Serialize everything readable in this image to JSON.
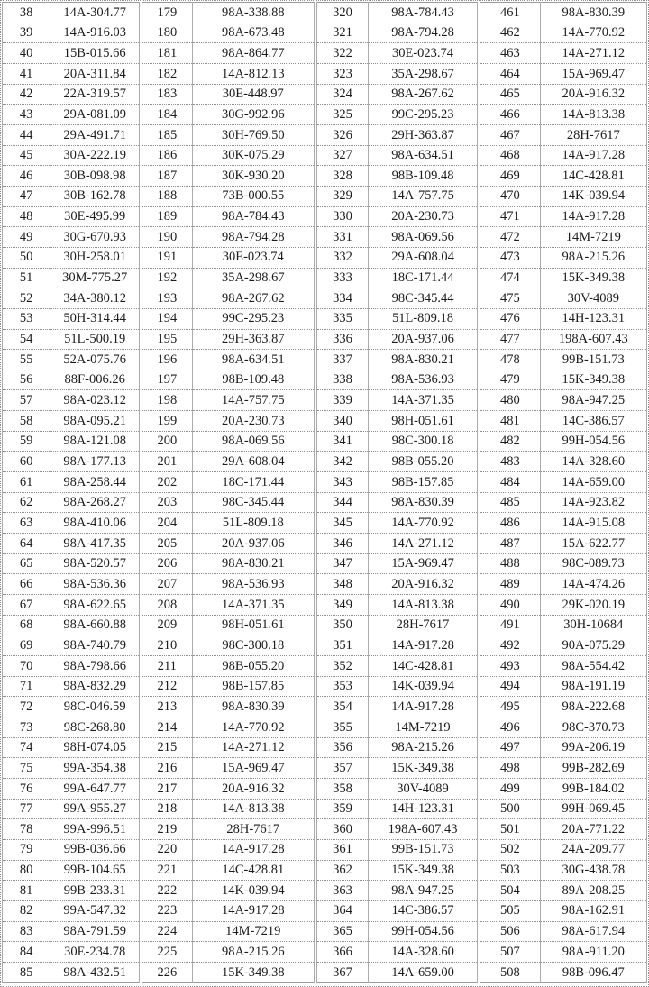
{
  "colors": {
    "background": "#ffffff",
    "text": "#1c1c1c",
    "outer_border": "#8f8f8f",
    "cell_border": "#ababab"
  },
  "table": {
    "description": "four side-by-side index/code column pairs",
    "groups": [
      {
        "rows": [
          [
            "38",
            "14A-304.77"
          ],
          [
            "39",
            "14A-916.03"
          ],
          [
            "40",
            "15B-015.66"
          ],
          [
            "41",
            "20A-311.84"
          ],
          [
            "42",
            "22A-319.57"
          ],
          [
            "43",
            "29A-081.09"
          ],
          [
            "44",
            "29A-491.71"
          ],
          [
            "45",
            "30A-222.19"
          ],
          [
            "46",
            "30B-098.98"
          ],
          [
            "47",
            "30B-162.78"
          ],
          [
            "48",
            "30E-495.99"
          ],
          [
            "49",
            "30G-670.93"
          ],
          [
            "50",
            "30H-258.01"
          ],
          [
            "51",
            "30M-775.27"
          ],
          [
            "52",
            "34A-380.12"
          ],
          [
            "53",
            "50H-314.44"
          ],
          [
            "54",
            "51L-500.19"
          ],
          [
            "55",
            "52A-075.76"
          ],
          [
            "56",
            "88F-006.26"
          ],
          [
            "57",
            "98A-023.12"
          ],
          [
            "58",
            "98A-095.21"
          ],
          [
            "59",
            "98A-121.08"
          ],
          [
            "60",
            "98A-177.13"
          ],
          [
            "61",
            "98A-258.44"
          ],
          [
            "62",
            "98A-268.27"
          ],
          [
            "63",
            "98A-410.06"
          ],
          [
            "64",
            "98A-417.35"
          ],
          [
            "65",
            "98A-520.57"
          ],
          [
            "66",
            "98A-536.36"
          ],
          [
            "67",
            "98A-622.65"
          ],
          [
            "68",
            "98A-660.88"
          ],
          [
            "69",
            "98A-740.79"
          ],
          [
            "70",
            "98A-798.66"
          ],
          [
            "71",
            "98A-832.29"
          ],
          [
            "72",
            "98C-046.59"
          ],
          [
            "73",
            "98C-268.80"
          ],
          [
            "74",
            "98H-074.05"
          ],
          [
            "75",
            "99A-354.38"
          ],
          [
            "76",
            "99A-647.77"
          ],
          [
            "77",
            "99A-955.27"
          ],
          [
            "78",
            "99A-996.51"
          ],
          [
            "79",
            "99B-036.66"
          ],
          [
            "80",
            "99B-104.65"
          ],
          [
            "81",
            "99B-233.31"
          ],
          [
            "82",
            "99A-547.32"
          ],
          [
            "83",
            "98A-791.59"
          ],
          [
            "84",
            "30E-234.78"
          ],
          [
            "85",
            "98A-432.51"
          ]
        ]
      },
      {
        "rows": [
          [
            "179",
            "98A-338.88"
          ],
          [
            "180",
            "98A-673.48"
          ],
          [
            "181",
            "98A-864.77"
          ],
          [
            "182",
            "14A-812.13"
          ],
          [
            "183",
            "30E-448.97"
          ],
          [
            "184",
            "30G-992.96"
          ],
          [
            "185",
            "30H-769.50"
          ],
          [
            "186",
            "30K-075.29"
          ],
          [
            "187",
            "30K-930.20"
          ],
          [
            "188",
            "73B-000.55"
          ],
          [
            "189",
            "98A-784.43"
          ],
          [
            "190",
            "98A-794.28"
          ],
          [
            "191",
            "30E-023.74"
          ],
          [
            "192",
            "35A-298.67"
          ],
          [
            "193",
            "98A-267.62"
          ],
          [
            "194",
            "99C-295.23"
          ],
          [
            "195",
            "29H-363.87"
          ],
          [
            "196",
            "98A-634.51"
          ],
          [
            "197",
            "98B-109.48"
          ],
          [
            "198",
            "14A-757.75"
          ],
          [
            "199",
            "20A-230.73"
          ],
          [
            "200",
            "98A-069.56"
          ],
          [
            "201",
            "29A-608.04"
          ],
          [
            "202",
            "18C-171.44"
          ],
          [
            "203",
            "98C-345.44"
          ],
          [
            "204",
            "51L-809.18"
          ],
          [
            "205",
            "20A-937.06"
          ],
          [
            "206",
            "98A-830.21"
          ],
          [
            "207",
            "98A-536.93"
          ],
          [
            "208",
            "14A-371.35"
          ],
          [
            "209",
            "98H-051.61"
          ],
          [
            "210",
            "98C-300.18"
          ],
          [
            "211",
            "98B-055.20"
          ],
          [
            "212",
            "98B-157.85"
          ],
          [
            "213",
            "98A-830.39"
          ],
          [
            "214",
            "14A-770.92"
          ],
          [
            "215",
            "14A-271.12"
          ],
          [
            "216",
            "15A-969.47"
          ],
          [
            "217",
            "20A-916.32"
          ],
          [
            "218",
            "14A-813.38"
          ],
          [
            "219",
            "28H-7617"
          ],
          [
            "220",
            "14A-917.28"
          ],
          [
            "221",
            "14C-428.81"
          ],
          [
            "222",
            "14K-039.94"
          ],
          [
            "223",
            "14A-917.28"
          ],
          [
            "224",
            "14M-7219"
          ],
          [
            "225",
            "98A-215.26"
          ],
          [
            "226",
            "15K-349.38"
          ]
        ]
      },
      {
        "rows": [
          [
            "320",
            "98A-784.43"
          ],
          [
            "321",
            "98A-794.28"
          ],
          [
            "322",
            "30E-023.74"
          ],
          [
            "323",
            "35A-298.67"
          ],
          [
            "324",
            "98A-267.62"
          ],
          [
            "325",
            "99C-295.23"
          ],
          [
            "326",
            "29H-363.87"
          ],
          [
            "327",
            "98A-634.51"
          ],
          [
            "328",
            "98B-109.48"
          ],
          [
            "329",
            "14A-757.75"
          ],
          [
            "330",
            "20A-230.73"
          ],
          [
            "331",
            "98A-069.56"
          ],
          [
            "332",
            "29A-608.04"
          ],
          [
            "333",
            "18C-171.44"
          ],
          [
            "334",
            "98C-345.44"
          ],
          [
            "335",
            "51L-809.18"
          ],
          [
            "336",
            "20A-937.06"
          ],
          [
            "337",
            "98A-830.21"
          ],
          [
            "338",
            "98A-536.93"
          ],
          [
            "339",
            "14A-371.35"
          ],
          [
            "340",
            "98H-051.61"
          ],
          [
            "341",
            "98C-300.18"
          ],
          [
            "342",
            "98B-055.20"
          ],
          [
            "343",
            "98B-157.85"
          ],
          [
            "344",
            "98A-830.39"
          ],
          [
            "345",
            "14A-770.92"
          ],
          [
            "346",
            "14A-271.12"
          ],
          [
            "347",
            "15A-969.47"
          ],
          [
            "348",
            "20A-916.32"
          ],
          [
            "349",
            "14A-813.38"
          ],
          [
            "350",
            "28H-7617"
          ],
          [
            "351",
            "14A-917.28"
          ],
          [
            "352",
            "14C-428.81"
          ],
          [
            "353",
            "14K-039.94"
          ],
          [
            "354",
            "14A-917.28"
          ],
          [
            "355",
            "14M-7219"
          ],
          [
            "356",
            "98A-215.26"
          ],
          [
            "357",
            "15K-349.38"
          ],
          [
            "358",
            "30V-4089"
          ],
          [
            "359",
            "14H-123.31"
          ],
          [
            "360",
            "198A-607.43"
          ],
          [
            "361",
            "99B-151.73"
          ],
          [
            "362",
            "15K-349.38"
          ],
          [
            "363",
            "98A-947.25"
          ],
          [
            "364",
            "14C-386.57"
          ],
          [
            "365",
            "99H-054.56"
          ],
          [
            "366",
            "14A-328.60"
          ],
          [
            "367",
            "14A-659.00"
          ]
        ]
      },
      {
        "rows": [
          [
            "461",
            "98A-830.39"
          ],
          [
            "462",
            "14A-770.92"
          ],
          [
            "463",
            "14A-271.12"
          ],
          [
            "464",
            "15A-969.47"
          ],
          [
            "465",
            "20A-916.32"
          ],
          [
            "466",
            "14A-813.38"
          ],
          [
            "467",
            "28H-7617"
          ],
          [
            "468",
            "14A-917.28"
          ],
          [
            "469",
            "14C-428.81"
          ],
          [
            "470",
            "14K-039.94"
          ],
          [
            "471",
            "14A-917.28"
          ],
          [
            "472",
            "14M-7219"
          ],
          [
            "473",
            "98A-215.26"
          ],
          [
            "474",
            "15K-349.38"
          ],
          [
            "475",
            "30V-4089"
          ],
          [
            "476",
            "14H-123.31"
          ],
          [
            "477",
            "198A-607.43"
          ],
          [
            "478",
            "99B-151.73"
          ],
          [
            "479",
            "15K-349.38"
          ],
          [
            "480",
            "98A-947.25"
          ],
          [
            "481",
            "14C-386.57"
          ],
          [
            "482",
            "99H-054.56"
          ],
          [
            "483",
            "14A-328.60"
          ],
          [
            "484",
            "14A-659.00"
          ],
          [
            "485",
            "14A-923.82"
          ],
          [
            "486",
            "14A-915.08"
          ],
          [
            "487",
            "15A-622.77"
          ],
          [
            "488",
            "98C-089.73"
          ],
          [
            "489",
            "14A-474.26"
          ],
          [
            "490",
            "29K-020.19"
          ],
          [
            "491",
            "30H-10684"
          ],
          [
            "492",
            "90A-075.29"
          ],
          [
            "493",
            "98A-554.42"
          ],
          [
            "494",
            "98A-191.19"
          ],
          [
            "495",
            "98A-222.68"
          ],
          [
            "496",
            "98C-370.73"
          ],
          [
            "497",
            "99A-206.19"
          ],
          [
            "498",
            "99B-282.69"
          ],
          [
            "499",
            "99B-184.02"
          ],
          [
            "500",
            "99H-069.45"
          ],
          [
            "501",
            "20A-771.22"
          ],
          [
            "502",
            "24A-209.77"
          ],
          [
            "503",
            "30G-438.78"
          ],
          [
            "504",
            "89A-208.25"
          ],
          [
            "505",
            "98A-162.91"
          ],
          [
            "506",
            "98A-617.94"
          ],
          [
            "507",
            "98A-911.20"
          ],
          [
            "508",
            "98B-096.47"
          ]
        ]
      }
    ]
  }
}
